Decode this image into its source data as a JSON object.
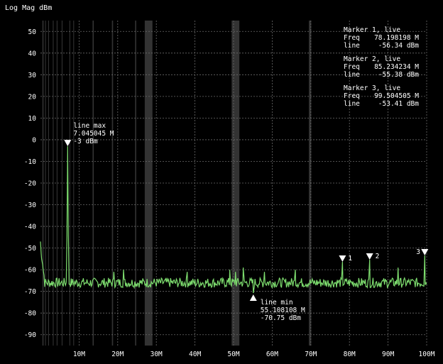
{
  "chart_data": {
    "type": "line",
    "title": "Log Mag dBm",
    "x_unit": "Hz",
    "xlim": [
      0,
      100000000
    ],
    "ylim": [
      -95,
      55
    ],
    "y_ticks": [
      50,
      40,
      30,
      20,
      10,
      0,
      -10,
      -20,
      -30,
      -40,
      -50,
      -60,
      -70,
      -80,
      -90
    ],
    "x_ticks": [
      {
        "value": 10000000,
        "label": "10M"
      },
      {
        "value": 20000000,
        "label": "20M"
      },
      {
        "value": 30000000,
        "label": "30M"
      },
      {
        "value": 40000000,
        "label": "40M"
      },
      {
        "value": 50000000,
        "label": "50M"
      },
      {
        "value": 60000000,
        "label": "60M"
      },
      {
        "value": 70000000,
        "label": "70M"
      },
      {
        "value": 80000000,
        "label": "80M"
      },
      {
        "value": 90000000,
        "label": "90M"
      },
      {
        "value": 100000000,
        "label": "100M"
      }
    ],
    "trace_color": "#7ddc6e",
    "interference_bands": [
      [
        500000,
        800000
      ],
      [
        1200000,
        1400000
      ],
      [
        2000000,
        2200000
      ],
      [
        3200000,
        3400000
      ],
      [
        4200000,
        4400000
      ],
      [
        5500000,
        5700000
      ],
      [
        7500000,
        7700000
      ],
      [
        8500000,
        8700000
      ],
      [
        13500000,
        13800000
      ],
      [
        18500000,
        18800000
      ],
      [
        24500000,
        24800000
      ],
      [
        27000000,
        29000000
      ],
      [
        49500000,
        51500000
      ],
      [
        69500000,
        70100000
      ]
    ],
    "series": [
      {
        "name": "line",
        "baseline": -66,
        "spikes": [
          {
            "x": 0,
            "y": -47
          },
          {
            "x": 300000,
            "y": -55
          },
          {
            "x": 700000,
            "y": -60
          },
          {
            "x": 7045045,
            "y": -3
          },
          {
            "x": 19000000,
            "y": -61
          },
          {
            "x": 21500000,
            "y": -60
          },
          {
            "x": 38000000,
            "y": -61
          },
          {
            "x": 49000000,
            "y": -60
          },
          {
            "x": 50500000,
            "y": -61
          },
          {
            "x": 52500000,
            "y": -59
          },
          {
            "x": 55108108,
            "y": -70.75
          },
          {
            "x": 58000000,
            "y": -61
          },
          {
            "x": 66000000,
            "y": -60
          },
          {
            "x": 78198198,
            "y": -56.34
          },
          {
            "x": 85234234,
            "y": -55.38
          },
          {
            "x": 92600000,
            "y": -59
          },
          {
            "x": 99504505,
            "y": -53.41
          }
        ]
      }
    ],
    "max_annotation": {
      "label": "line max",
      "x": 7045045,
      "y": -3,
      "freq_text": "7.045045 M",
      "value_text": "-3 dBm"
    },
    "min_annotation": {
      "label": "line min",
      "x": 55108108,
      "y": -70.75,
      "freq_text": "55.108108 M",
      "value_text": "-70.75 dBm"
    },
    "markers": [
      {
        "number": "1",
        "title": "Marker 1, live",
        "x": 78198198,
        "y": -56.34,
        "freq_label": "Freq",
        "freq_text": "78.198198 M",
        "value_label": "line",
        "value_text": "-56.34 dBm"
      },
      {
        "number": "2",
        "title": "Marker 2, live",
        "x": 85234234,
        "y": -55.38,
        "freq_label": "Freq",
        "freq_text": "85.234234 M",
        "value_label": "line",
        "value_text": "-55.38 dBm"
      },
      {
        "number": "3",
        "title": "Marker 3, live",
        "x": 99504505,
        "y": -53.41,
        "freq_label": "Freq",
        "freq_text": "99.504505 M",
        "value_label": "line",
        "value_text": "-53.41 dBm"
      }
    ]
  }
}
